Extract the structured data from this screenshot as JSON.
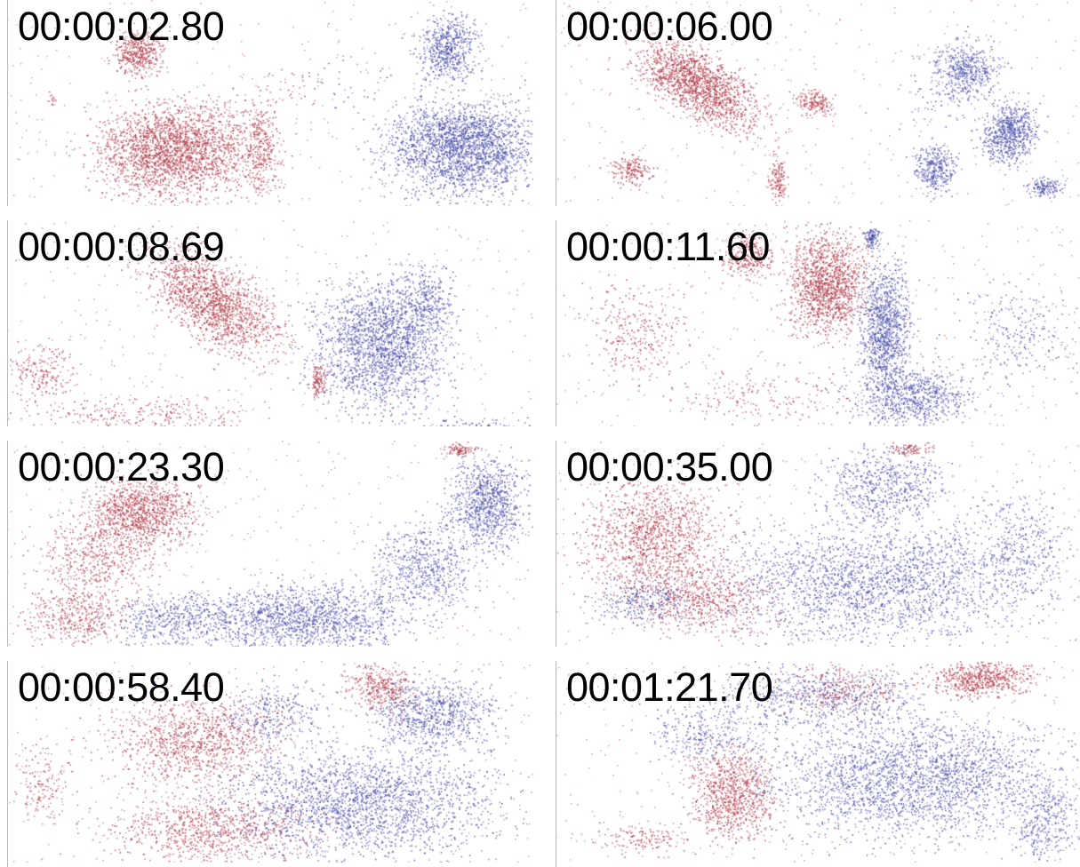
{
  "colors": {
    "red_particles": "#b03a48",
    "blue_particles": "#4a4fa8",
    "background": "#ffffff",
    "timestamp_text": "#000000"
  },
  "frames": [
    {
      "timestamp": "00:00:02.80"
    },
    {
      "timestamp": "00:00:06.00"
    },
    {
      "timestamp": "00:00:08.69"
    },
    {
      "timestamp": "00:00:11.60"
    },
    {
      "timestamp": "00:00:23.30"
    },
    {
      "timestamp": "00:00:35.00"
    },
    {
      "timestamp": "00:00:58.40"
    },
    {
      "timestamp": "00:01:21.70"
    }
  ]
}
